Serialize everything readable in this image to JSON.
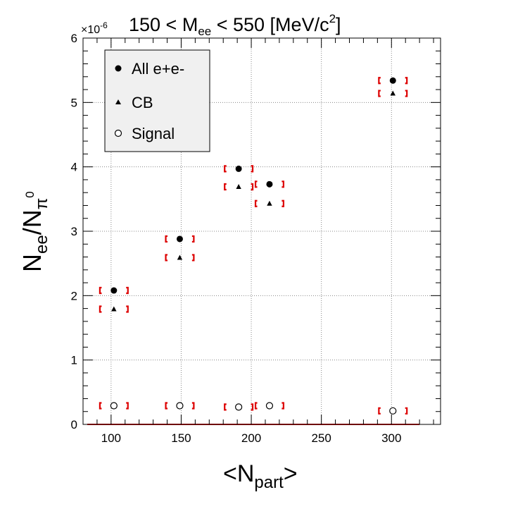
{
  "chart_data": {
    "type": "scatter",
    "title": {
      "prefix": "150 < M",
      "sub": "ee",
      "middle": " < 550 [MeV/c",
      "sup": "2",
      "suffix": "]"
    },
    "xlabel": {
      "main": "<N",
      "sub": "part",
      "suffix": ">"
    },
    "ylabel": {
      "main": "N",
      "sub1": "ee",
      "slash": "/N",
      "sub2": "π",
      "sup": "0"
    },
    "y_multiplier": "×10",
    "y_multiplier_exp": "-6",
    "xlim": [
      80,
      335
    ],
    "ylim": [
      0,
      6
    ],
    "x_ticks": [
      100,
      150,
      200,
      250,
      300
    ],
    "y_ticks": [
      0,
      1,
      2,
      3,
      4,
      5,
      6
    ],
    "grid": true,
    "legend_position": "top-left",
    "series": [
      {
        "name": "All e+e-",
        "marker": "filled-circle",
        "x": [
          102,
          149,
          191,
          213,
          301
        ],
        "y": [
          2.08,
          2.88,
          3.97,
          3.73,
          5.34
        ]
      },
      {
        "name": "CB",
        "marker": "filled-triangle",
        "x": [
          102,
          149,
          191,
          213,
          301
        ],
        "y": [
          1.79,
          2.59,
          3.69,
          3.43,
          5.14
        ]
      },
      {
        "name": "Signal",
        "marker": "open-circle",
        "x": [
          102,
          149,
          191,
          213,
          301
        ],
        "y": [
          0.29,
          0.29,
          0.27,
          0.29,
          0.21
        ]
      }
    ],
    "systematic_band": {
      "x_half_width": 10,
      "color": "#dd0000"
    },
    "zero_line": {
      "x_range": [
        83,
        320
      ],
      "y": 0,
      "color": "#dd0000"
    },
    "colors": {
      "marker": "#000000",
      "legend_bg": "#f0f0f0",
      "grid": "#888888"
    }
  }
}
